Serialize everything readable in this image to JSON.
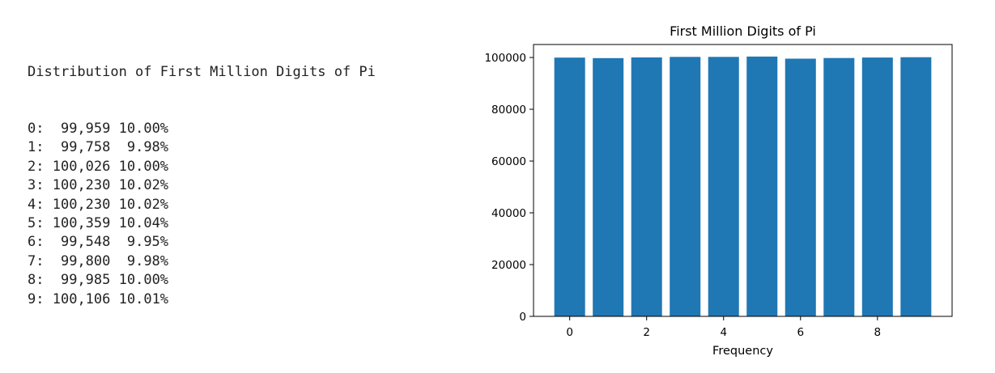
{
  "console": {
    "heading": "Distribution of First Million Digits of Pi",
    "rows": [
      {
        "digit": "0",
        "count": "99,959",
        "percent": "10.00%"
      },
      {
        "digit": "1",
        "count": "99,758",
        "percent": "9.98%"
      },
      {
        "digit": "2",
        "count": "100,026",
        "percent": "10.00%"
      },
      {
        "digit": "3",
        "count": "100,230",
        "percent": "10.02%"
      },
      {
        "digit": "4",
        "count": "100,230",
        "percent": "10.02%"
      },
      {
        "digit": "5",
        "count": "100,359",
        "percent": "10.04%"
      },
      {
        "digit": "6",
        "count": "99,548",
        "percent": "9.95%"
      },
      {
        "digit": "7",
        "count": "99,800",
        "percent": "9.98%"
      },
      {
        "digit": "8",
        "count": "99,985",
        "percent": "10.00%"
      },
      {
        "digit": "9",
        "count": "100,106",
        "percent": "10.01%"
      }
    ]
  },
  "chart_data": {
    "type": "bar",
    "title": "First Million Digits of Pi",
    "xlabel": "Frequency",
    "ylabel": "",
    "categories": [
      0,
      1,
      2,
      3,
      4,
      5,
      6,
      7,
      8,
      9
    ],
    "values": [
      99959,
      99758,
      100026,
      100230,
      100230,
      100359,
      99548,
      99800,
      99985,
      100106
    ],
    "xlim": [
      -0.94,
      9.94
    ],
    "ylim": [
      0,
      105018
    ],
    "xticks": [
      0,
      2,
      4,
      6,
      8
    ],
    "xtick_labels": [
      "0",
      "2",
      "4",
      "6",
      "8"
    ],
    "yticks": [
      0,
      20000,
      40000,
      60000,
      80000,
      100000
    ],
    "ytick_labels": [
      "0",
      "20000",
      "40000",
      "60000",
      "80000",
      "100000"
    ],
    "bar_color": "#1f77b4",
    "grid": false,
    "legend": "none"
  }
}
